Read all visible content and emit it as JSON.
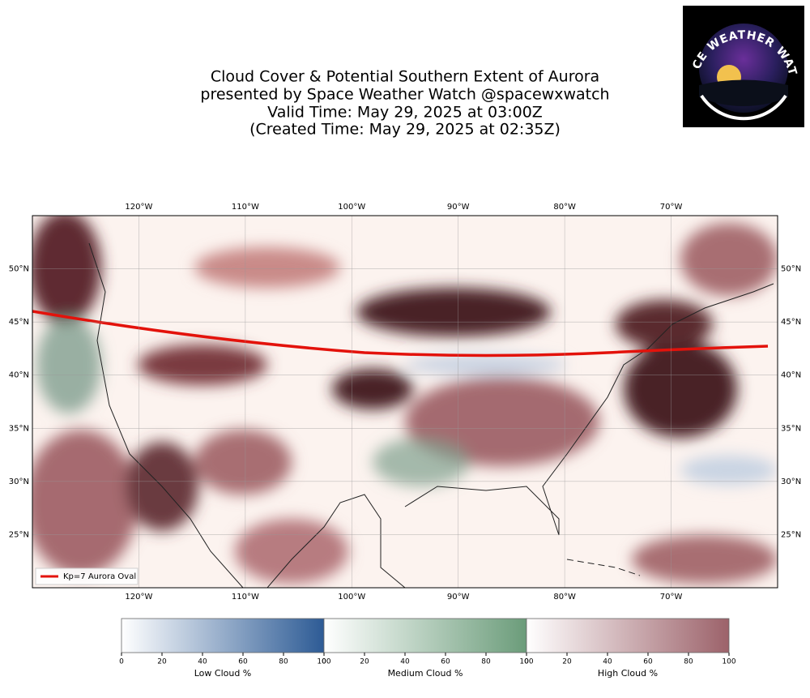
{
  "header": {
    "title_lines": [
      "Cloud Cover & Potential Southern Extent of Aurora",
      "presented by Space Weather Watch @spacewxwatch",
      "Valid Time: May 29, 2025 at 03:00Z",
      "(Created Time: May 29, 2025 at 02:35Z)"
    ],
    "logo_text": "SPACE WEATHER WATCH"
  },
  "map": {
    "xlim": [
      -130,
      -60
    ],
    "ylim": [
      20,
      55
    ],
    "xticks": [
      {
        "value": -120,
        "label": "120°W"
      },
      {
        "value": -110,
        "label": "110°W"
      },
      {
        "value": -100,
        "label": "100°W"
      },
      {
        "value": -90,
        "label": "90°W"
      },
      {
        "value": -80,
        "label": "80°W"
      },
      {
        "value": -70,
        "label": "70°W"
      }
    ],
    "yticks": [
      {
        "value": 25,
        "label": "25°N"
      },
      {
        "value": 30,
        "label": "30°N"
      },
      {
        "value": 35,
        "label": "35°N"
      },
      {
        "value": 40,
        "label": "40°N"
      },
      {
        "value": 45,
        "label": "45°N"
      },
      {
        "value": 50,
        "label": "50°N"
      }
    ],
    "legend": "Kp=7 Aurora Oval"
  },
  "colorbars": [
    {
      "label": "Low Cloud %",
      "ticks": [
        0,
        20,
        40,
        60,
        80,
        100
      ],
      "color": "#2d5b95"
    },
    {
      "label": "Medium Cloud %",
      "ticks": [
        0,
        20,
        40,
        60,
        80,
        100
      ],
      "color": "#6b9c7a"
    },
    {
      "label": "High Cloud %",
      "ticks": [
        0,
        20,
        40,
        60,
        80,
        100
      ],
      "color": "#9c626a"
    }
  ]
}
